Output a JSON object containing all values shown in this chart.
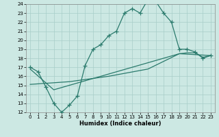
{
  "xlabel": "Humidex (Indice chaleur)",
  "bg_color": "#cce8e3",
  "grid_color": "#a8cdc8",
  "line_color": "#2a7a6c",
  "xlim_min": -0.5,
  "xlim_max": 23.5,
  "ylim_min": 12,
  "ylim_max": 24,
  "xticks": [
    0,
    1,
    2,
    3,
    4,
    5,
    6,
    7,
    8,
    9,
    10,
    11,
    12,
    13,
    14,
    15,
    16,
    17,
    18,
    19,
    20,
    21,
    22,
    23
  ],
  "yticks": [
    12,
    13,
    14,
    15,
    16,
    17,
    18,
    19,
    20,
    21,
    22,
    23,
    24
  ],
  "curve1_x": [
    0,
    1,
    2,
    3,
    4,
    5,
    6,
    7,
    8,
    9,
    10,
    11,
    12,
    13,
    14,
    15,
    16,
    17,
    18,
    19,
    20,
    21,
    22,
    23
  ],
  "curve1_y": [
    17.0,
    16.5,
    14.8,
    13.0,
    12.0,
    12.8,
    13.8,
    17.2,
    19.0,
    19.5,
    20.5,
    21.0,
    23.0,
    23.5,
    23.0,
    24.5,
    24.3,
    23.0,
    22.0,
    19.0,
    19.0,
    18.7,
    18.0,
    18.3
  ],
  "curve2_x": [
    0,
    3,
    7,
    11,
    15,
    19,
    23
  ],
  "curve2_y": [
    16.8,
    14.5,
    15.5,
    16.5,
    17.5,
    18.5,
    18.3
  ],
  "curve3_x": [
    0,
    5,
    10,
    15,
    19,
    20,
    21,
    22,
    23
  ],
  "curve3_y": [
    15.1,
    15.4,
    16.0,
    16.8,
    18.5,
    18.6,
    18.6,
    18.1,
    18.3
  ]
}
